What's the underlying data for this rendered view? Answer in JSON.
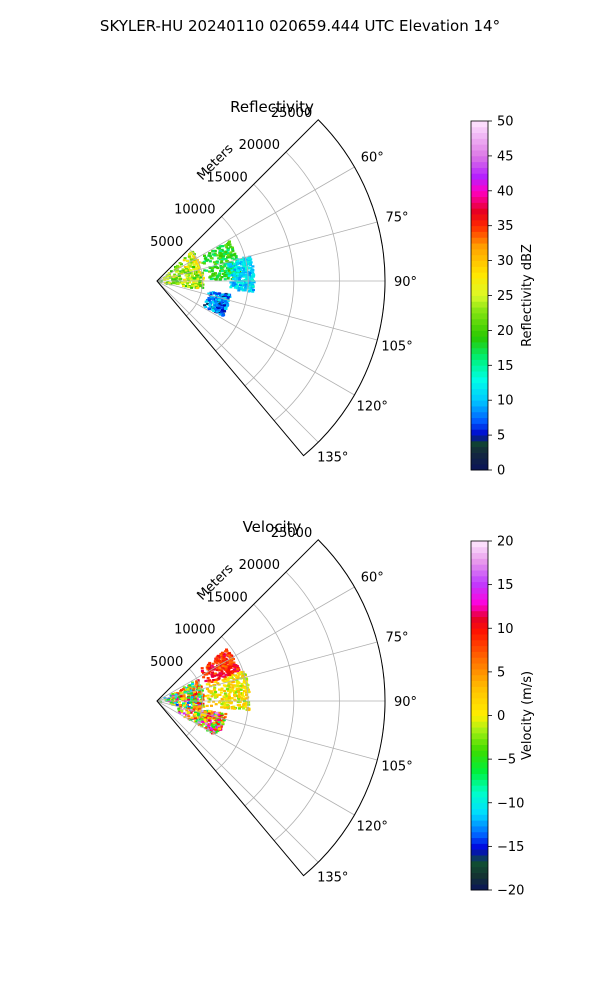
{
  "figure": {
    "title": "SKYLER-HU  20240110  020659.444 UTC Elevation 14°"
  },
  "chart_data": [
    {
      "type": "polar_sector_scan",
      "title": "Reflectivity",
      "range_axis_label": "Meters",
      "range_ticks": [
        5000,
        10000,
        15000,
        20000,
        25000
      ],
      "range_tick_labels": [
        "5000",
        "10000",
        "15000",
        "20000",
        "25000"
      ],
      "range_max": 25000,
      "azimuth_range_deg": [
        45,
        140
      ],
      "azimuth_ticks": [
        60,
        75,
        90,
        105,
        120,
        135
      ],
      "azimuth_tick_labels": [
        "60°",
        "75°",
        "90°",
        "105°",
        "120°",
        "135°"
      ],
      "grid": true,
      "colorbar": {
        "label": "Reflectivity dBZ",
        "min": 0,
        "max": 50,
        "ticks": [
          0,
          5,
          10,
          15,
          20,
          25,
          30,
          35,
          40,
          45,
          50
        ],
        "tick_labels": [
          "0",
          "5",
          "10",
          "15",
          "20",
          "25",
          "30",
          "35",
          "40",
          "45",
          "50"
        ]
      },
      "echo_regions": [
        {
          "az": [
            48,
            100
          ],
          "r": [
            0,
            5000
          ],
          "value": [
            18,
            30
          ]
        },
        {
          "az": [
            60,
            88
          ],
          "r": [
            5000,
            9000
          ],
          "value": [
            15,
            22
          ]
        },
        {
          "az": [
            74,
            96
          ],
          "r": [
            7500,
            10500
          ],
          "value": [
            8,
            14
          ]
        },
        {
          "az": [
            100,
            118
          ],
          "r": [
            5500,
            8000
          ],
          "value": [
            4,
            12
          ]
        }
      ]
    },
    {
      "type": "polar_sector_scan",
      "title": "Velocity",
      "range_axis_label": "Meters",
      "range_ticks": [
        5000,
        10000,
        15000,
        20000,
        25000
      ],
      "range_tick_labels": [
        "5000",
        "10000",
        "15000",
        "20000",
        "25000"
      ],
      "range_max": 25000,
      "azimuth_range_deg": [
        45,
        140
      ],
      "azimuth_ticks": [
        60,
        75,
        90,
        105,
        120,
        135
      ],
      "azimuth_tick_labels": [
        "60°",
        "75°",
        "90°",
        "105°",
        "120°",
        "135°"
      ],
      "grid": true,
      "colorbar": {
        "label": "Velocity (m/s)",
        "min": -20,
        "max": 20,
        "ticks": [
          -20,
          -15,
          -10,
          -5,
          0,
          5,
          10,
          15,
          20
        ],
        "tick_labels": [
          "−20",
          "−15",
          "−10",
          "−5",
          "0",
          "5",
          "10",
          "15",
          "20"
        ]
      },
      "echo_regions": [
        {
          "az": [
            52,
            70
          ],
          "r": [
            5500,
            9500
          ],
          "value": [
            6,
            12
          ]
        },
        {
          "az": [
            70,
            95
          ],
          "r": [
            5000,
            10000
          ],
          "value": [
            -3,
            4
          ]
        },
        {
          "az": [
            60,
            100
          ],
          "r": [
            0,
            5000
          ],
          "value": [
            -15,
            14
          ]
        },
        {
          "az": [
            100,
            120
          ],
          "r": [
            2000,
            7500
          ],
          "value": [
            -8,
            18
          ]
        }
      ]
    }
  ]
}
